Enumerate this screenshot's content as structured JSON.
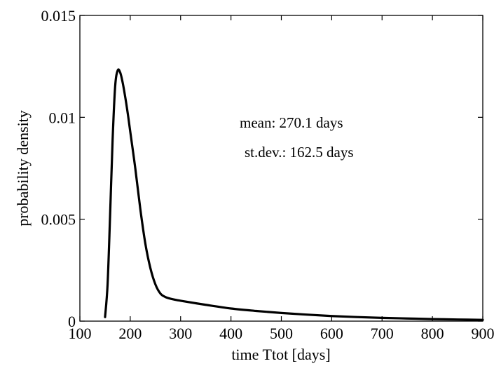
{
  "chart_data": {
    "type": "line",
    "title": "",
    "xlabel": "time Ttot [days]",
    "ylabel": "probability density",
    "xlim": [
      100,
      900
    ],
    "ylim": [
      0,
      0.015
    ],
    "xticks": [
      100,
      200,
      300,
      400,
      500,
      600,
      700,
      800,
      900
    ],
    "xtick_labels": [
      "100",
      "200",
      "300",
      "400",
      "500",
      "600",
      "700",
      "800",
      "900"
    ],
    "yticks": [
      0,
      0.005,
      0.01,
      0.015
    ],
    "ytick_labels": [
      "0",
      "0.005",
      "0.01",
      "0.015"
    ],
    "grid": false,
    "annotations": [
      "mean: 270.1 days",
      "st.dev.: 162.5 days"
    ],
    "series": [
      {
        "color": "#000000",
        "x": [
          150,
          155,
          160,
          165,
          170,
          175,
          180,
          185,
          190,
          195,
          200,
          210,
          220,
          230,
          240,
          250,
          260,
          270,
          280,
          300,
          350,
          400,
          450,
          500,
          550,
          600,
          650,
          700,
          750,
          800,
          850,
          900
        ],
        "y": [
          0.0002,
          0.0018,
          0.0052,
          0.0089,
          0.0115,
          0.0123,
          0.0122,
          0.0117,
          0.011,
          0.0102,
          0.0093,
          0.0075,
          0.0055,
          0.0038,
          0.0026,
          0.0018,
          0.00135,
          0.00118,
          0.0011,
          0.001,
          0.0008,
          0.00062,
          0.0005,
          0.0004,
          0.00032,
          0.00025,
          0.0002,
          0.00016,
          0.00013,
          0.0001,
          8e-05,
          6e-05
        ]
      }
    ]
  }
}
